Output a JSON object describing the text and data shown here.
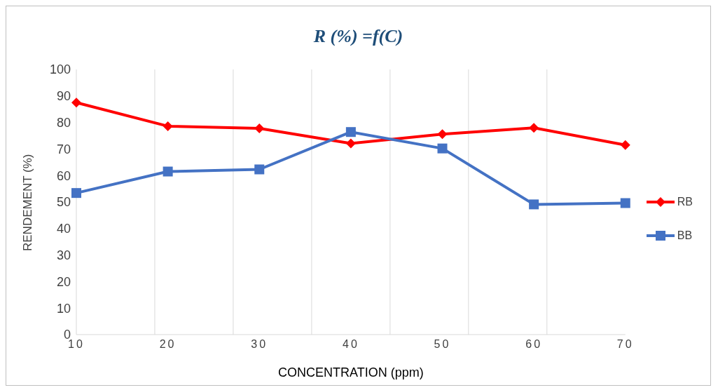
{
  "chart_data": {
    "type": "line",
    "title": "R (%) =f(C)",
    "xlabel": "CONCENTRATION (ppm)",
    "ylabel": "RENDEMENT  (%)",
    "categories": [
      "10",
      "20",
      "30",
      "40",
      "50",
      "60",
      "70"
    ],
    "series": [
      {
        "name": "RB",
        "color": "#ff0000",
        "marker": "diamond",
        "values": [
          87.5,
          78.6,
          77.8,
          72.1,
          75.6,
          78,
          71.5
        ]
      },
      {
        "name": "BB",
        "color": "#4472c4",
        "marker": "square",
        "values": [
          53.4,
          61.5,
          62.3,
          76.4,
          70.2,
          49.1,
          49.6
        ]
      }
    ],
    "ylim": [
      0,
      100
    ],
    "yticks": [
      0,
      10,
      20,
      30,
      40,
      50,
      60,
      70,
      80,
      90,
      100
    ],
    "grid": "x",
    "legend": "right",
    "line_style": "solid"
  }
}
